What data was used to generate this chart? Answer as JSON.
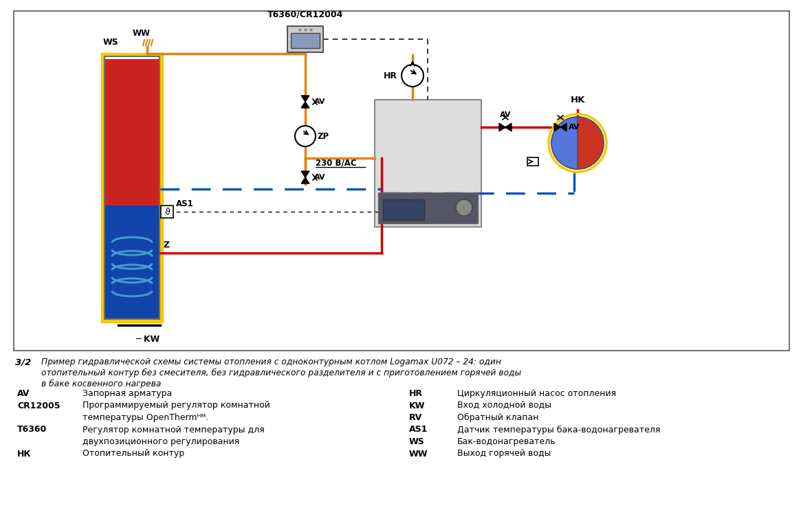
{
  "title_num": "3/2",
  "caption_line1": "Пример гидравлической схемы системы отопления с одноконтурным котлом Logamax U072 – 24: один",
  "caption_line2": "отопительный контур без смесителя, без гидравлического разделителя и с приготовлением горячей воды",
  "caption_line3": "в баке косвенного нагрева",
  "bg_color": "#ffffff",
  "orange_color": "#E8820C",
  "red_color": "#CC0000",
  "blue_color": "#1155BB",
  "black_color": "#000000",
  "yellow_color": "#F5C800",
  "gray_boiler": "#CCCCCC",
  "gray_dark": "#888888"
}
